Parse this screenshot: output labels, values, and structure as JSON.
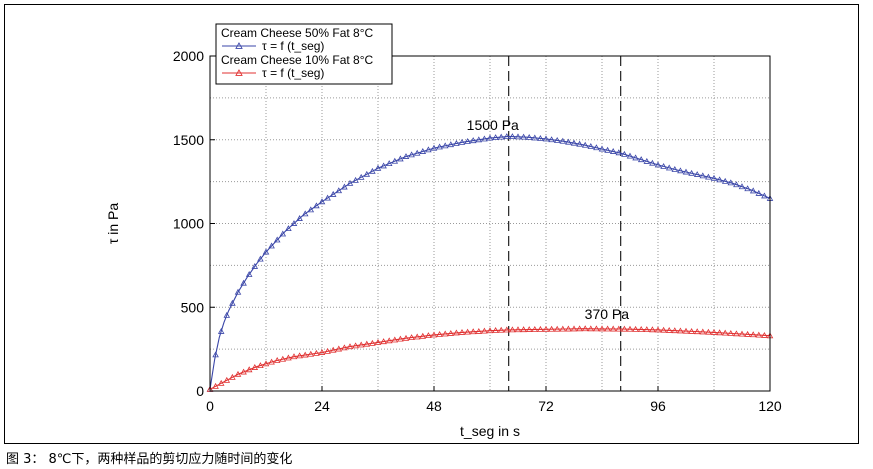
{
  "caption": "图 3：  8℃下，两种样品的剪切应力随时间的变化",
  "chart_data": {
    "type": "line",
    "xlabel": "t_seg in s",
    "ylabel": "τ in Pa",
    "xlim": [
      0,
      120
    ],
    "ylim": [
      0,
      2000
    ],
    "xticks": [
      0,
      24,
      48,
      72,
      96,
      120
    ],
    "yticks": [
      0,
      500,
      1000,
      1500,
      2000
    ],
    "grid": true,
    "legend_position": "top-left",
    "legend": [
      {
        "title": "Cream Cheese 50% Fat 8°C",
        "entry": "τ = f (t_seg)",
        "color": "#3a46a8",
        "marker": "triangle-up"
      },
      {
        "title": "Cream Cheese 10% Fat 8°C",
        "entry": "τ = f (t_seg)",
        "color": "#e03030",
        "marker": "triangle-up"
      }
    ],
    "series": [
      {
        "name": "Cream Cheese 50% Fat 8°C",
        "color": "#3a46a8",
        "x": [
          0,
          1,
          2,
          3,
          4,
          6,
          8,
          10,
          12,
          16,
          20,
          24,
          30,
          36,
          42,
          48,
          54,
          60,
          64,
          68,
          72,
          76,
          80,
          84,
          88,
          92,
          96,
          100,
          104,
          108,
          112,
          116,
          120
        ],
        "y": [
          10,
          190,
          320,
          410,
          480,
          590,
          680,
          760,
          830,
          950,
          1050,
          1130,
          1240,
          1330,
          1400,
          1450,
          1485,
          1510,
          1520,
          1515,
          1505,
          1490,
          1470,
          1445,
          1420,
          1385,
          1350,
          1320,
          1295,
          1270,
          1240,
          1200,
          1150
        ]
      },
      {
        "name": "Cream Cheese 10% Fat 8°C",
        "color": "#e03030",
        "x": [
          0,
          2,
          4,
          6,
          10,
          14,
          18,
          24,
          30,
          36,
          42,
          48,
          54,
          60,
          64,
          70,
          76,
          80,
          84,
          88,
          92,
          96,
          100,
          104,
          108,
          112,
          116,
          120
        ],
        "y": [
          10,
          40,
          70,
          100,
          145,
          180,
          205,
          230,
          265,
          290,
          315,
          335,
          350,
          360,
          365,
          368,
          370,
          372,
          371,
          370,
          368,
          365,
          360,
          355,
          350,
          343,
          337,
          330
        ]
      }
    ],
    "markers": [
      64,
      88
    ],
    "annotations": [
      {
        "text": "1500 Pa",
        "x": 64,
        "y": 1500
      },
      {
        "text": "370 Pa",
        "x": 88,
        "y": 370
      }
    ]
  }
}
